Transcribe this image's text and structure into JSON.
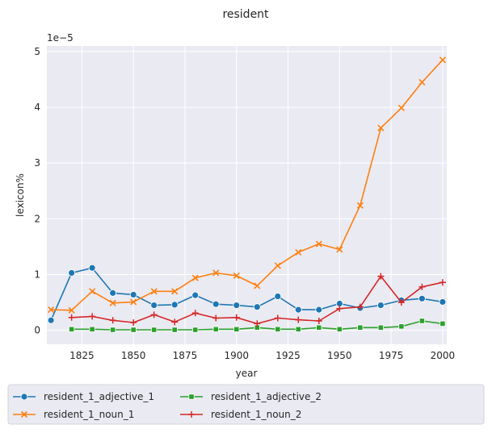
{
  "chart_data": {
    "type": "line",
    "title": "resident",
    "xlabel": "year",
    "ylabel": "lexicon%",
    "y_scale_label": "1e−5",
    "xlim": [
      1808,
      2002
    ],
    "ylim": [
      -0.25,
      5.1
    ],
    "x_ticks": [
      1825,
      1850,
      1875,
      1900,
      1925,
      1950,
      1975,
      2000
    ],
    "y_ticks": [
      0,
      1,
      2,
      3,
      4,
      5
    ],
    "grid": true,
    "legend_position": "bottom",
    "series": [
      {
        "name": "resident_1_adjective_1",
        "color": "#1f77b4",
        "marker": "circle",
        "x": [
          1810,
          1820,
          1830,
          1840,
          1850,
          1860,
          1870,
          1880,
          1890,
          1900,
          1910,
          1920,
          1930,
          1940,
          1950,
          1960,
          1970,
          1980,
          1990,
          2000
        ],
        "y": [
          0.18,
          1.03,
          1.12,
          0.67,
          0.64,
          0.45,
          0.46,
          0.63,
          0.47,
          0.45,
          0.42,
          0.61,
          0.37,
          0.37,
          0.48,
          0.4,
          0.45,
          0.54,
          0.57,
          0.51
        ]
      },
      {
        "name": "resident_1_noun_1",
        "color": "#ff7f0e",
        "marker": "x",
        "x": [
          1810,
          1820,
          1830,
          1840,
          1850,
          1860,
          1870,
          1880,
          1890,
          1900,
          1910,
          1920,
          1930,
          1940,
          1950,
          1960,
          1970,
          1980,
          1990,
          2000
        ],
        "y": [
          0.37,
          0.36,
          0.7,
          0.49,
          0.51,
          0.7,
          0.7,
          0.94,
          1.03,
          0.98,
          0.8,
          1.16,
          1.4,
          1.55,
          1.45,
          2.24,
          3.63,
          3.99,
          4.45,
          4.85
        ]
      },
      {
        "name": "resident_1_adjective_2",
        "color": "#2ca02c",
        "marker": "square",
        "x": [
          1820,
          1830,
          1840,
          1850,
          1860,
          1870,
          1880,
          1890,
          1900,
          1910,
          1920,
          1930,
          1940,
          1950,
          1960,
          1970,
          1980,
          1990,
          2000
        ],
        "y": [
          0.02,
          0.02,
          0.01,
          0.01,
          0.01,
          0.01,
          0.01,
          0.02,
          0.02,
          0.05,
          0.02,
          0.02,
          0.05,
          0.02,
          0.05,
          0.05,
          0.07,
          0.17,
          0.12
        ]
      },
      {
        "name": "resident_1_noun_2",
        "color": "#d62728",
        "marker": "plus",
        "x": [
          1820,
          1830,
          1840,
          1850,
          1860,
          1870,
          1880,
          1890,
          1900,
          1910,
          1920,
          1930,
          1940,
          1950,
          1960,
          1970,
          1980,
          1990,
          2000
        ],
        "y": [
          0.23,
          0.25,
          0.18,
          0.14,
          0.28,
          0.15,
          0.31,
          0.22,
          0.23,
          0.12,
          0.22,
          0.19,
          0.17,
          0.39,
          0.42,
          0.97,
          0.5,
          0.78,
          0.86
        ]
      }
    ]
  }
}
